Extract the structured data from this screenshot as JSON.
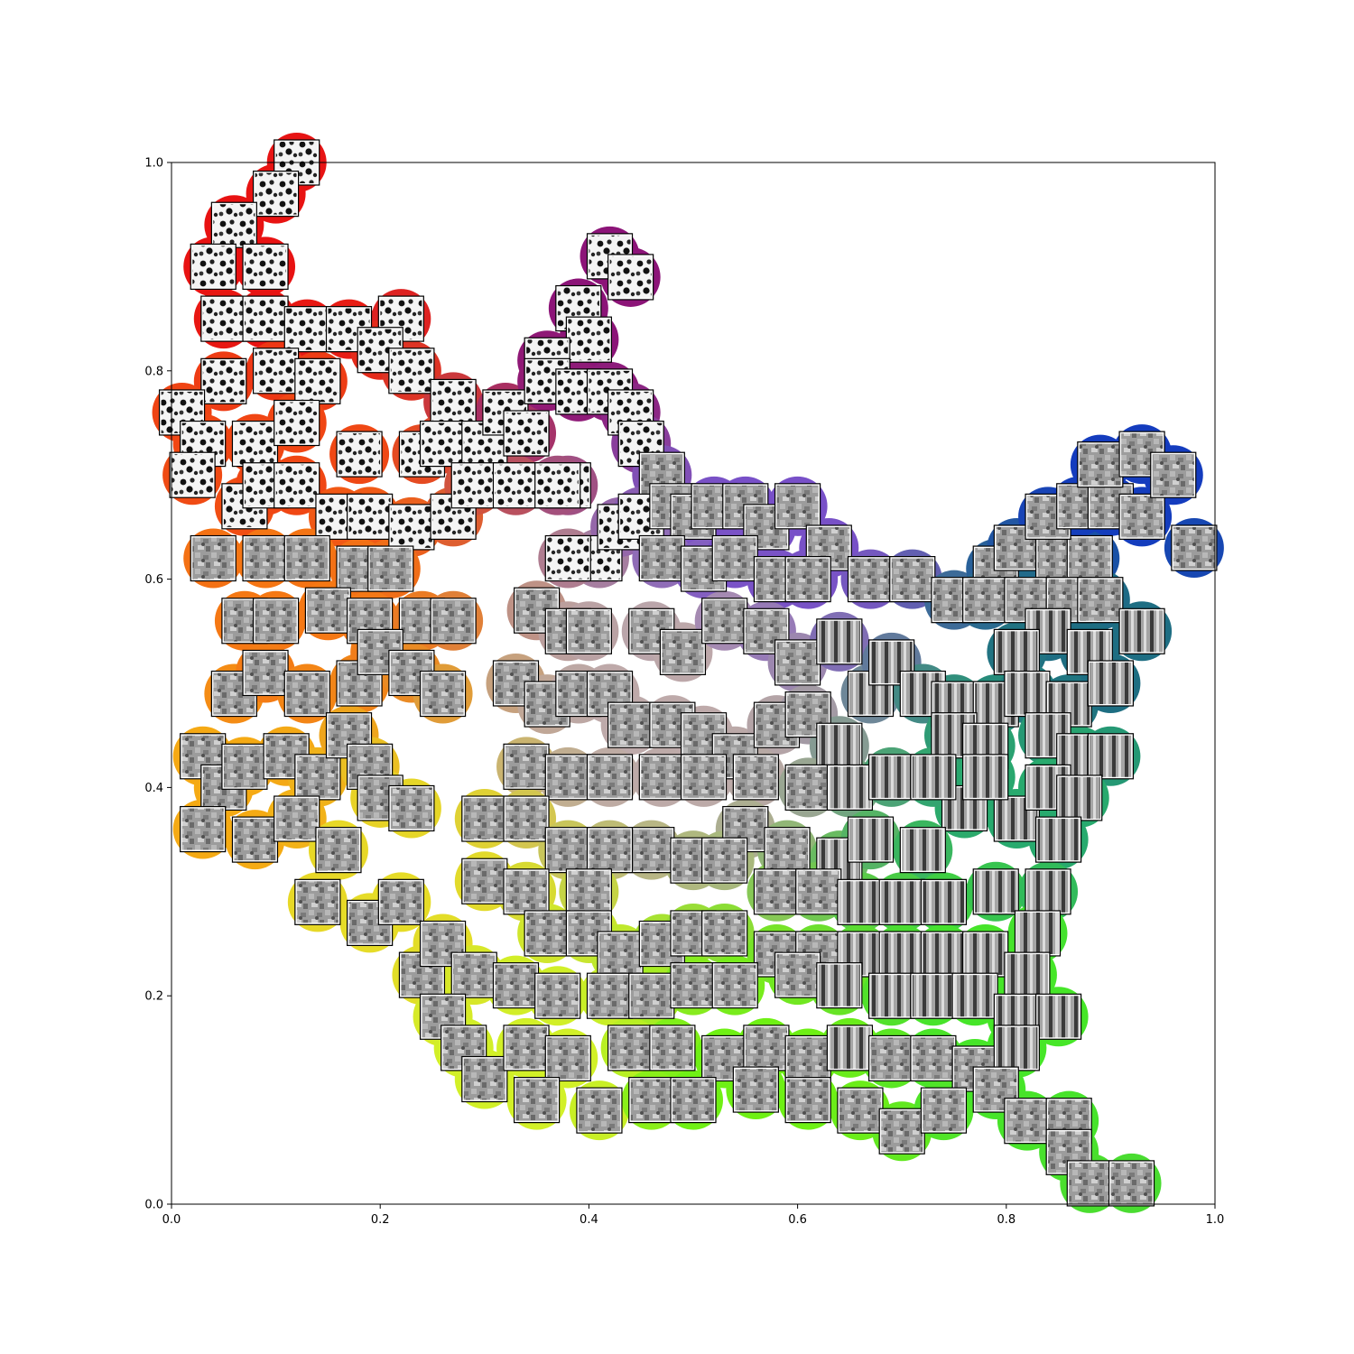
{
  "chart_data": {
    "type": "scatter",
    "title": "",
    "xlabel": "",
    "ylabel": "",
    "xlim": [
      0,
      1
    ],
    "ylim": [
      0,
      1
    ],
    "x_ticks": [
      "0.0",
      "0.2",
      "0.4",
      "0.6",
      "0.8",
      "1.0"
    ],
    "y_ticks": [
      "0.0",
      "0.2",
      "0.4",
      "0.6",
      "0.8",
      "1.0"
    ],
    "grid": false,
    "legend": "none",
    "markers": "image thumbnails (grayscale particle patches) over colored circles",
    "colormap": "hue gradient: red (top-left), purple (top-center), blue (right), green (bottom-right), yellow/orange (bottom-left)",
    "points": [
      [
        0.12,
        1.0
      ],
      [
        0.1,
        0.97
      ],
      [
        0.06,
        0.94
      ],
      [
        0.04,
        0.9
      ],
      [
        0.09,
        0.9
      ],
      [
        0.05,
        0.85
      ],
      [
        0.09,
        0.85
      ],
      [
        0.13,
        0.84
      ],
      [
        0.17,
        0.84
      ],
      [
        0.22,
        0.85
      ],
      [
        0.2,
        0.82
      ],
      [
        0.23,
        0.8
      ],
      [
        0.05,
        0.79
      ],
      [
        0.1,
        0.8
      ],
      [
        0.14,
        0.79
      ],
      [
        0.01,
        0.76
      ],
      [
        0.03,
        0.73
      ],
      [
        0.02,
        0.7
      ],
      [
        0.07,
        0.67
      ],
      [
        0.04,
        0.62
      ],
      [
        0.08,
        0.73
      ],
      [
        0.12,
        0.75
      ],
      [
        0.18,
        0.72
      ],
      [
        0.24,
        0.72
      ],
      [
        0.27,
        0.77
      ],
      [
        0.26,
        0.73
      ],
      [
        0.3,
        0.73
      ],
      [
        0.32,
        0.76
      ],
      [
        0.34,
        0.74
      ],
      [
        0.09,
        0.69
      ],
      [
        0.12,
        0.69
      ],
      [
        0.16,
        0.66
      ],
      [
        0.19,
        0.66
      ],
      [
        0.23,
        0.65
      ],
      [
        0.27,
        0.66
      ],
      [
        0.29,
        0.69
      ],
      [
        0.33,
        0.69
      ],
      [
        0.38,
        0.69
      ],
      [
        0.09,
        0.62
      ],
      [
        0.13,
        0.62
      ],
      [
        0.18,
        0.61
      ],
      [
        0.21,
        0.61
      ],
      [
        0.07,
        0.56
      ],
      [
        0.1,
        0.56
      ],
      [
        0.15,
        0.57
      ],
      [
        0.19,
        0.56
      ],
      [
        0.24,
        0.56
      ],
      [
        0.27,
        0.56
      ],
      [
        0.06,
        0.49
      ],
      [
        0.09,
        0.51
      ],
      [
        0.13,
        0.49
      ],
      [
        0.18,
        0.5
      ],
      [
        0.2,
        0.53
      ],
      [
        0.23,
        0.51
      ],
      [
        0.26,
        0.49
      ],
      [
        0.03,
        0.43
      ],
      [
        0.05,
        0.4
      ],
      [
        0.07,
        0.42
      ],
      [
        0.11,
        0.43
      ],
      [
        0.14,
        0.41
      ],
      [
        0.17,
        0.45
      ],
      [
        0.19,
        0.42
      ],
      [
        0.03,
        0.36
      ],
      [
        0.08,
        0.35
      ],
      [
        0.12,
        0.37
      ],
      [
        0.16,
        0.34
      ],
      [
        0.2,
        0.39
      ],
      [
        0.23,
        0.38
      ],
      [
        0.14,
        0.29
      ],
      [
        0.19,
        0.27
      ],
      [
        0.22,
        0.29
      ],
      [
        0.24,
        0.22
      ],
      [
        0.26,
        0.25
      ],
      [
        0.29,
        0.22
      ],
      [
        0.26,
        0.18
      ],
      [
        0.28,
        0.15
      ],
      [
        0.3,
        0.12
      ],
      [
        0.37,
        0.69
      ],
      [
        0.41,
        0.62
      ],
      [
        0.43,
        0.65
      ],
      [
        0.38,
        0.62
      ],
      [
        0.35,
        0.57
      ],
      [
        0.38,
        0.55
      ],
      [
        0.4,
        0.55
      ],
      [
        0.33,
        0.5
      ],
      [
        0.36,
        0.48
      ],
      [
        0.39,
        0.49
      ],
      [
        0.42,
        0.49
      ],
      [
        0.39,
        0.86
      ],
      [
        0.42,
        0.91
      ],
      [
        0.44,
        0.89
      ],
      [
        0.4,
        0.83
      ],
      [
        0.36,
        0.81
      ],
      [
        0.36,
        0.79
      ],
      [
        0.39,
        0.78
      ],
      [
        0.42,
        0.78
      ],
      [
        0.44,
        0.76
      ],
      [
        0.45,
        0.73
      ],
      [
        0.47,
        0.7
      ],
      [
        0.45,
        0.66
      ],
      [
        0.48,
        0.67
      ],
      [
        0.5,
        0.66
      ],
      [
        0.52,
        0.67
      ],
      [
        0.55,
        0.67
      ],
      [
        0.57,
        0.65
      ],
      [
        0.6,
        0.67
      ],
      [
        0.63,
        0.63
      ],
      [
        0.67,
        0.6
      ],
      [
        0.71,
        0.6
      ],
      [
        0.75,
        0.58
      ],
      [
        0.47,
        0.62
      ],
      [
        0.51,
        0.61
      ],
      [
        0.54,
        0.62
      ],
      [
        0.58,
        0.6
      ],
      [
        0.61,
        0.6
      ],
      [
        0.46,
        0.55
      ],
      [
        0.49,
        0.53
      ],
      [
        0.53,
        0.56
      ],
      [
        0.57,
        0.55
      ],
      [
        0.6,
        0.52
      ],
      [
        0.64,
        0.54
      ],
      [
        0.44,
        0.46
      ],
      [
        0.48,
        0.46
      ],
      [
        0.51,
        0.45
      ],
      [
        0.54,
        0.43
      ],
      [
        0.58,
        0.46
      ],
      [
        0.61,
        0.47
      ],
      [
        0.64,
        0.44
      ],
      [
        0.67,
        0.49
      ],
      [
        0.69,
        0.52
      ],
      [
        0.72,
        0.49
      ],
      [
        0.75,
        0.48
      ],
      [
        0.79,
        0.61
      ],
      [
        0.81,
        0.63
      ],
      [
        0.85,
        0.62
      ],
      [
        0.88,
        0.62
      ],
      [
        0.84,
        0.66
      ],
      [
        0.87,
        0.67
      ],
      [
        0.9,
        0.67
      ],
      [
        0.93,
        0.66
      ],
      [
        0.89,
        0.71
      ],
      [
        0.93,
        0.72
      ],
      [
        0.96,
        0.7
      ],
      [
        0.98,
        0.63
      ],
      [
        0.78,
        0.58
      ],
      [
        0.82,
        0.58
      ],
      [
        0.86,
        0.58
      ],
      [
        0.89,
        0.58
      ],
      [
        0.84,
        0.55
      ],
      [
        0.88,
        0.53
      ],
      [
        0.93,
        0.55
      ],
      [
        0.81,
        0.53
      ],
      [
        0.79,
        0.48
      ],
      [
        0.82,
        0.49
      ],
      [
        0.86,
        0.48
      ],
      [
        0.9,
        0.5
      ],
      [
        0.75,
        0.45
      ],
      [
        0.78,
        0.44
      ],
      [
        0.84,
        0.45
      ],
      [
        0.87,
        0.43
      ],
      [
        0.9,
        0.43
      ],
      [
        0.76,
        0.38
      ],
      [
        0.81,
        0.37
      ],
      [
        0.84,
        0.4
      ],
      [
        0.87,
        0.39
      ],
      [
        0.85,
        0.35
      ],
      [
        0.56,
        0.41
      ],
      [
        0.61,
        0.4
      ],
      [
        0.65,
        0.4
      ],
      [
        0.69,
        0.41
      ],
      [
        0.73,
        0.41
      ],
      [
        0.78,
        0.41
      ],
      [
        0.55,
        0.36
      ],
      [
        0.59,
        0.34
      ],
      [
        0.64,
        0.33
      ],
      [
        0.67,
        0.35
      ],
      [
        0.72,
        0.34
      ],
      [
        0.46,
        0.34
      ],
      [
        0.5,
        0.33
      ],
      [
        0.53,
        0.33
      ],
      [
        0.58,
        0.3
      ],
      [
        0.62,
        0.3
      ],
      [
        0.66,
        0.29
      ],
      [
        0.7,
        0.29
      ],
      [
        0.74,
        0.29
      ],
      [
        0.79,
        0.3
      ],
      [
        0.84,
        0.3
      ],
      [
        0.83,
        0.26
      ],
      [
        0.34,
        0.42
      ],
      [
        0.38,
        0.41
      ],
      [
        0.42,
        0.41
      ],
      [
        0.47,
        0.41
      ],
      [
        0.51,
        0.41
      ],
      [
        0.3,
        0.37
      ],
      [
        0.34,
        0.37
      ],
      [
        0.38,
        0.34
      ],
      [
        0.42,
        0.34
      ],
      [
        0.3,
        0.31
      ],
      [
        0.34,
        0.3
      ],
      [
        0.4,
        0.3
      ],
      [
        0.36,
        0.26
      ],
      [
        0.4,
        0.26
      ],
      [
        0.43,
        0.24
      ],
      [
        0.47,
        0.25
      ],
      [
        0.5,
        0.26
      ],
      [
        0.53,
        0.26
      ],
      [
        0.58,
        0.24
      ],
      [
        0.62,
        0.24
      ],
      [
        0.66,
        0.24
      ],
      [
        0.7,
        0.24
      ],
      [
        0.74,
        0.24
      ],
      [
        0.78,
        0.24
      ],
      [
        0.82,
        0.22
      ],
      [
        0.33,
        0.21
      ],
      [
        0.37,
        0.2
      ],
      [
        0.42,
        0.2
      ],
      [
        0.46,
        0.2
      ],
      [
        0.5,
        0.21
      ],
      [
        0.54,
        0.21
      ],
      [
        0.6,
        0.22
      ],
      [
        0.64,
        0.21
      ],
      [
        0.69,
        0.2
      ],
      [
        0.73,
        0.2
      ],
      [
        0.77,
        0.2
      ],
      [
        0.81,
        0.18
      ],
      [
        0.85,
        0.18
      ],
      [
        0.34,
        0.15
      ],
      [
        0.38,
        0.14
      ],
      [
        0.44,
        0.15
      ],
      [
        0.48,
        0.15
      ],
      [
        0.53,
        0.14
      ],
      [
        0.57,
        0.15
      ],
      [
        0.61,
        0.14
      ],
      [
        0.65,
        0.15
      ],
      [
        0.69,
        0.14
      ],
      [
        0.73,
        0.14
      ],
      [
        0.77,
        0.13
      ],
      [
        0.81,
        0.15
      ],
      [
        0.35,
        0.1
      ],
      [
        0.41,
        0.09
      ],
      [
        0.46,
        0.1
      ],
      [
        0.5,
        0.1
      ],
      [
        0.56,
        0.11
      ],
      [
        0.61,
        0.1
      ],
      [
        0.66,
        0.09
      ],
      [
        0.7,
        0.07
      ],
      [
        0.74,
        0.09
      ],
      [
        0.79,
        0.11
      ],
      [
        0.82,
        0.08
      ],
      [
        0.86,
        0.08
      ],
      [
        0.86,
        0.05
      ],
      [
        0.88,
        0.02
      ],
      [
        0.92,
        0.02
      ]
    ]
  }
}
